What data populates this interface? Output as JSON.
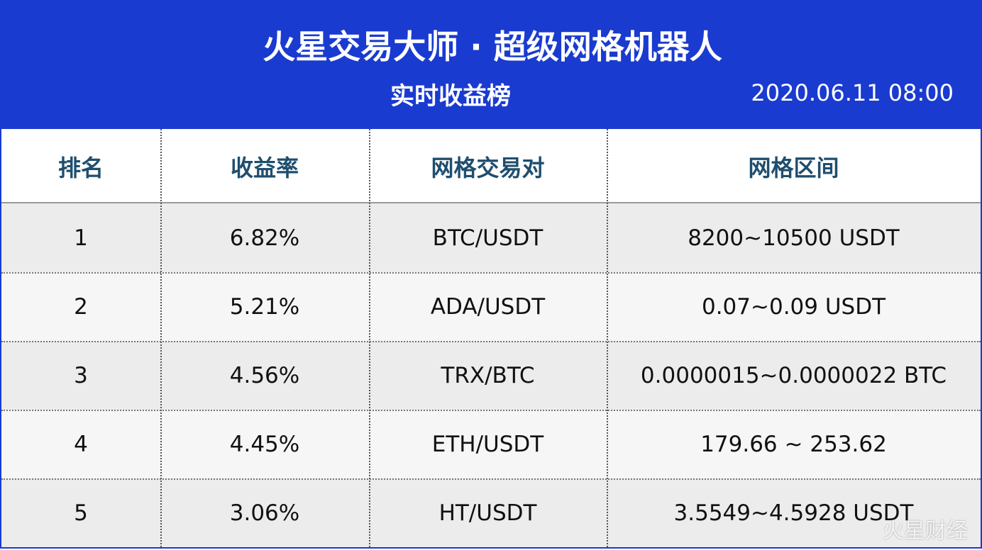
{
  "header": {
    "title": "火星交易大师 · 超级网格机器人",
    "subtitle": "实时收益榜",
    "datetime": "2020.06.11 08:00"
  },
  "table": {
    "columns": [
      "排名",
      "收益率",
      "网格交易对",
      "网格区间"
    ],
    "rows": [
      [
        "1",
        "6.82%",
        "BTC/USDT",
        "8200~10500 USDT"
      ],
      [
        "2",
        "5.21%",
        "ADA/USDT",
        "0.07~0.09 USDT"
      ],
      [
        "3",
        "4.56%",
        "TRX/BTC",
        "0.0000015~0.0000022 BTC"
      ],
      [
        "4",
        "4.45%",
        "ETH/USDT",
        "179.66 ~ 253.62"
      ],
      [
        "5",
        "3.06%",
        "HT/USDT",
        "3.5549~4.5928 USDT"
      ]
    ]
  },
  "watermark": "火星财经"
}
